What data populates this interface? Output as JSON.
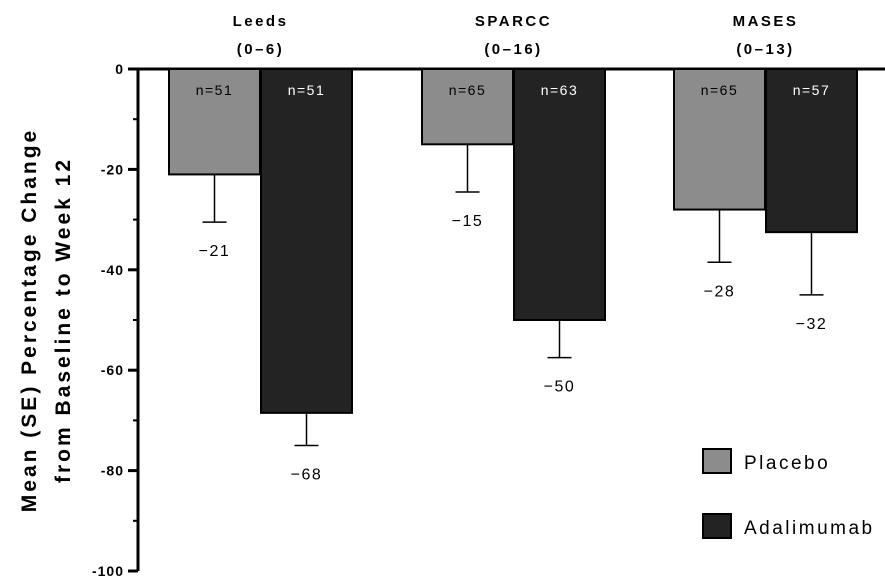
{
  "chart_data": {
    "type": "bar",
    "ylabel_lines": [
      "Mean (SE) Percentage Change",
      "from Baseline to Week 12"
    ],
    "ylim": [
      -100,
      0
    ],
    "yticks": [
      0,
      -20,
      -40,
      -60,
      -80,
      -100
    ],
    "ytick_labels": [
      "0",
      "-20",
      "-40",
      "-60",
      "-80",
      "-100"
    ],
    "groups": [
      {
        "name": "Leeds",
        "range": "(0–6)"
      },
      {
        "name": "SPARCC",
        "range": "(0–16)"
      },
      {
        "name": "MASES",
        "range": "(0–13)"
      }
    ],
    "series": [
      {
        "name": "Placebo",
        "color": "#8c8c8c",
        "values": [
          -21,
          -15,
          -28
        ],
        "value_labels": [
          "−21",
          "−15",
          "−28"
        ],
        "errors": [
          9.5,
          9.5,
          10.5
        ],
        "n": [
          "n=51",
          "n=65",
          "n=65"
        ]
      },
      {
        "name": "Adalimumab",
        "color": "#232323",
        "values": [
          -68.5,
          -50,
          -32.5
        ],
        "value_labels": [
          "−68",
          "−50",
          "−32"
        ],
        "errors": [
          6.5,
          7.5,
          12.5
        ],
        "n": [
          "n=51",
          "n=63",
          "n=57"
        ]
      }
    ],
    "grid": false,
    "legend_position": "bottom-right"
  }
}
